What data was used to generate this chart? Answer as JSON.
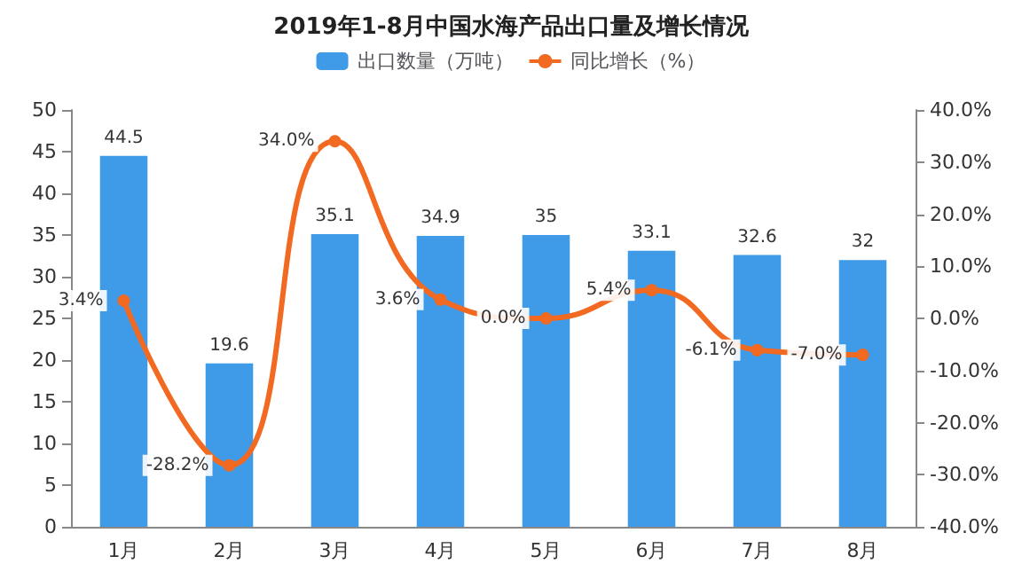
{
  "chart_data": {
    "type": "bar",
    "title": "2019年1-8月中国水海产品出口量及增长情况",
    "categories": [
      "1月",
      "2月",
      "3月",
      "4月",
      "5月",
      "6月",
      "7月",
      "8月"
    ],
    "series": [
      {
        "name": "出口数量（万吨）",
        "type": "bar",
        "color": "#3f9ae8",
        "values": [
          44.5,
          19.6,
          35.1,
          34.9,
          35,
          33.1,
          32.6,
          32
        ]
      },
      {
        "name": "同比增长（%）",
        "type": "line",
        "axis": "y2",
        "color": "#f26a21",
        "values": [
          3.4,
          -28.2,
          34.0,
          3.6,
          0.0,
          5.4,
          -6.1,
          -7.0
        ],
        "value_labels": [
          "3.4%",
          "-28.2%",
          "34.0%",
          "3.6%",
          "0.0%",
          "5.4%",
          "-6.1%",
          "-7.0%"
        ]
      }
    ],
    "data_labels": true,
    "ylim": [
      0,
      50
    ],
    "yticks": [
      0,
      5,
      10,
      15,
      20,
      25,
      30,
      35,
      40,
      45,
      50
    ],
    "y2lim": [
      -40,
      40
    ],
    "y2ticks": [
      {
        "value": -40,
        "label": "-40.0%"
      },
      {
        "value": -30,
        "label": "-30.0%"
      },
      {
        "value": -20,
        "label": "-20.0%"
      },
      {
        "value": -10,
        "label": "-10.0%"
      },
      {
        "value": 0,
        "label": "0.0%"
      },
      {
        "value": 10,
        "label": "10.0%"
      },
      {
        "value": 20,
        "label": "20.0%"
      },
      {
        "value": 30,
        "label": "30.0%"
      },
      {
        "value": 40,
        "label": "40.0%"
      }
    ],
    "legend": "top",
    "grid": false,
    "marker": "circle",
    "line_style": "solid"
  }
}
